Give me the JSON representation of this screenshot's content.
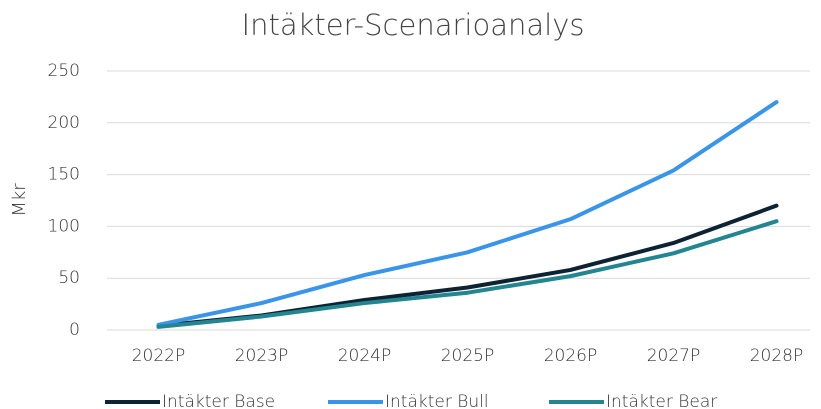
{
  "chart_data": {
    "type": "line",
    "title": "Intäkter-Scenarioanalys",
    "ylabel": "Mkr",
    "categories": [
      "2022P",
      "2023P",
      "2024P",
      "2025P",
      "2026P",
      "2027P",
      "2028P"
    ],
    "series": [
      {
        "name": "Intäkter Base",
        "color": "#0d2233",
        "values": [
          4,
          14,
          29,
          41,
          58,
          84,
          120
        ]
      },
      {
        "name": "Intäkter Bull",
        "color": "#3a95e8",
        "values": [
          5,
          26,
          53,
          75,
          107,
          154,
          220
        ]
      },
      {
        "name": "Intäkter Bear",
        "color": "#238590",
        "values": [
          3,
          13,
          26,
          36,
          52,
          74,
          105
        ]
      }
    ],
    "ylim": [
      0,
      250
    ],
    "yticks": [
      0,
      50,
      100,
      150,
      200,
      250
    ],
    "grid": true,
    "legend": "bottom"
  }
}
